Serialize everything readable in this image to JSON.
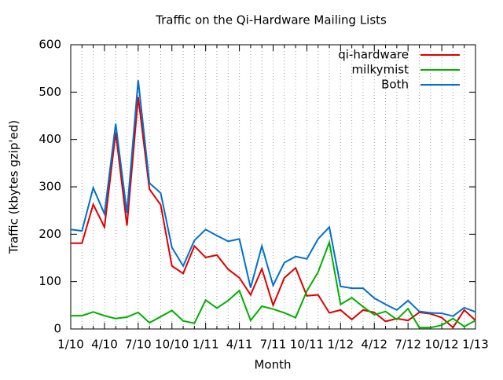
{
  "chart_data": {
    "type": "line",
    "title": "Traffic on the Qi-Hardware Mailing Lists",
    "xlabel": "Month",
    "ylabel": "Traffic (kbytes gzip'ed)",
    "categories": [
      "1/10",
      null,
      null,
      "4/10",
      null,
      null,
      "7/10",
      null,
      null,
      "10/10",
      null,
      null,
      "1/11",
      null,
      null,
      "4/11",
      null,
      null,
      "7/11",
      null,
      null,
      "10/11",
      null,
      null,
      "1/12",
      null,
      null,
      "4/12",
      null,
      null,
      "7/12",
      null,
      null,
      "10/12",
      null,
      null,
      "1/13"
    ],
    "series": [
      {
        "name": "qi-hardware",
        "color": "#e00000",
        "values": [
          181,
          181,
          263,
          215,
          415,
          218,
          490,
          295,
          262,
          133,
          117,
          175,
          151,
          156,
          126,
          108,
          72,
          127,
          50,
          108,
          129,
          70,
          72,
          34,
          40,
          20,
          40,
          35,
          16,
          22,
          18,
          35,
          32,
          24,
          3,
          40,
          18
        ]
      },
      {
        "name": "milkymist",
        "color": "#00b000",
        "values": [
          28,
          28,
          36,
          28,
          22,
          25,
          35,
          13,
          26,
          39,
          17,
          12,
          61,
          44,
          60,
          81,
          18,
          48,
          42,
          34,
          24,
          80,
          120,
          183,
          52,
          66,
          47,
          30,
          37,
          20,
          43,
          3,
          3,
          8,
          22,
          5,
          18
        ]
      },
      {
        "name": "Both",
        "color": "#0070d0",
        "values": [
          210,
          207,
          298,
          243,
          433,
          245,
          525,
          308,
          287,
          172,
          133,
          187,
          210,
          197,
          185,
          190,
          87,
          175,
          92,
          140,
          153,
          148,
          190,
          215,
          90,
          86,
          86,
          65,
          52,
          40,
          60,
          37,
          34,
          33,
          27,
          45,
          36
        ]
      }
    ],
    "ylim": [
      0,
      600
    ],
    "yticks": [
      0,
      100,
      200,
      300,
      400,
      500,
      600
    ],
    "grid": "x",
    "legend": "top-right"
  }
}
